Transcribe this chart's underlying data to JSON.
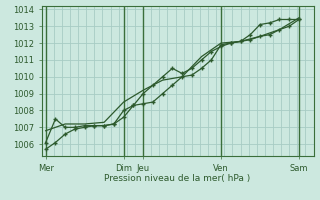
{
  "bg_color": "#cce8df",
  "grid_color_h": "#b8d8d0",
  "grid_color_v": "#b8d8d0",
  "vline_dark_color": "#3a6e3a",
  "line_color": "#2d5a2d",
  "marker_color": "#2d5a2d",
  "xlabel": "Pression niveau de la mer( hPa )",
  "ylim": [
    1005.3,
    1014.2
  ],
  "yticks": [
    1006,
    1007,
    1008,
    1009,
    1010,
    1011,
    1012,
    1013,
    1014
  ],
  "x_day_labels": [
    "Mer",
    "Dim",
    "Jeu",
    "Ven",
    "Sam"
  ],
  "x_day_positions": [
    0,
    96,
    120,
    216,
    312
  ],
  "vline_dark_positions": [
    0,
    96,
    120,
    216,
    312
  ],
  "xlim": [
    -5,
    330
  ],
  "num_vgrid": 33,
  "series1_x": [
    0,
    12,
    24,
    36,
    48,
    60,
    72,
    84,
    96,
    108,
    120,
    132,
    144,
    156,
    168,
    180,
    192,
    204,
    216,
    228,
    240,
    252,
    264,
    276,
    288,
    300,
    312
  ],
  "series1_y": [
    1005.7,
    1006.1,
    1006.6,
    1006.9,
    1007.0,
    1007.1,
    1007.1,
    1007.2,
    1007.6,
    1008.3,
    1008.4,
    1008.5,
    1009.0,
    1009.5,
    1010.0,
    1010.1,
    1010.5,
    1011.0,
    1011.9,
    1012.0,
    1012.1,
    1012.2,
    1012.4,
    1012.5,
    1012.8,
    1013.0,
    1013.4
  ],
  "series2_x": [
    0,
    12,
    24,
    36,
    48,
    60,
    72,
    84,
    96,
    108,
    120,
    132,
    144,
    156,
    168,
    180,
    192,
    204,
    216,
    228,
    240,
    252,
    264,
    276,
    288,
    300,
    312
  ],
  "series2_y": [
    1006.1,
    1007.5,
    1007.0,
    1007.0,
    1007.1,
    1007.1,
    1007.1,
    1007.2,
    1008.0,
    1008.3,
    1009.0,
    1009.5,
    1010.0,
    1010.5,
    1010.2,
    1010.5,
    1011.0,
    1011.5,
    1011.8,
    1012.0,
    1012.1,
    1012.5,
    1013.1,
    1013.2,
    1013.4,
    1013.4,
    1013.4
  ],
  "series3_x": [
    0,
    24,
    48,
    72,
    96,
    120,
    144,
    168,
    192,
    216,
    240,
    264,
    288,
    312
  ],
  "series3_y": [
    1006.8,
    1007.2,
    1007.2,
    1007.3,
    1008.5,
    1009.2,
    1009.8,
    1010.0,
    1011.2,
    1012.0,
    1012.1,
    1012.4,
    1012.8,
    1013.5
  ]
}
